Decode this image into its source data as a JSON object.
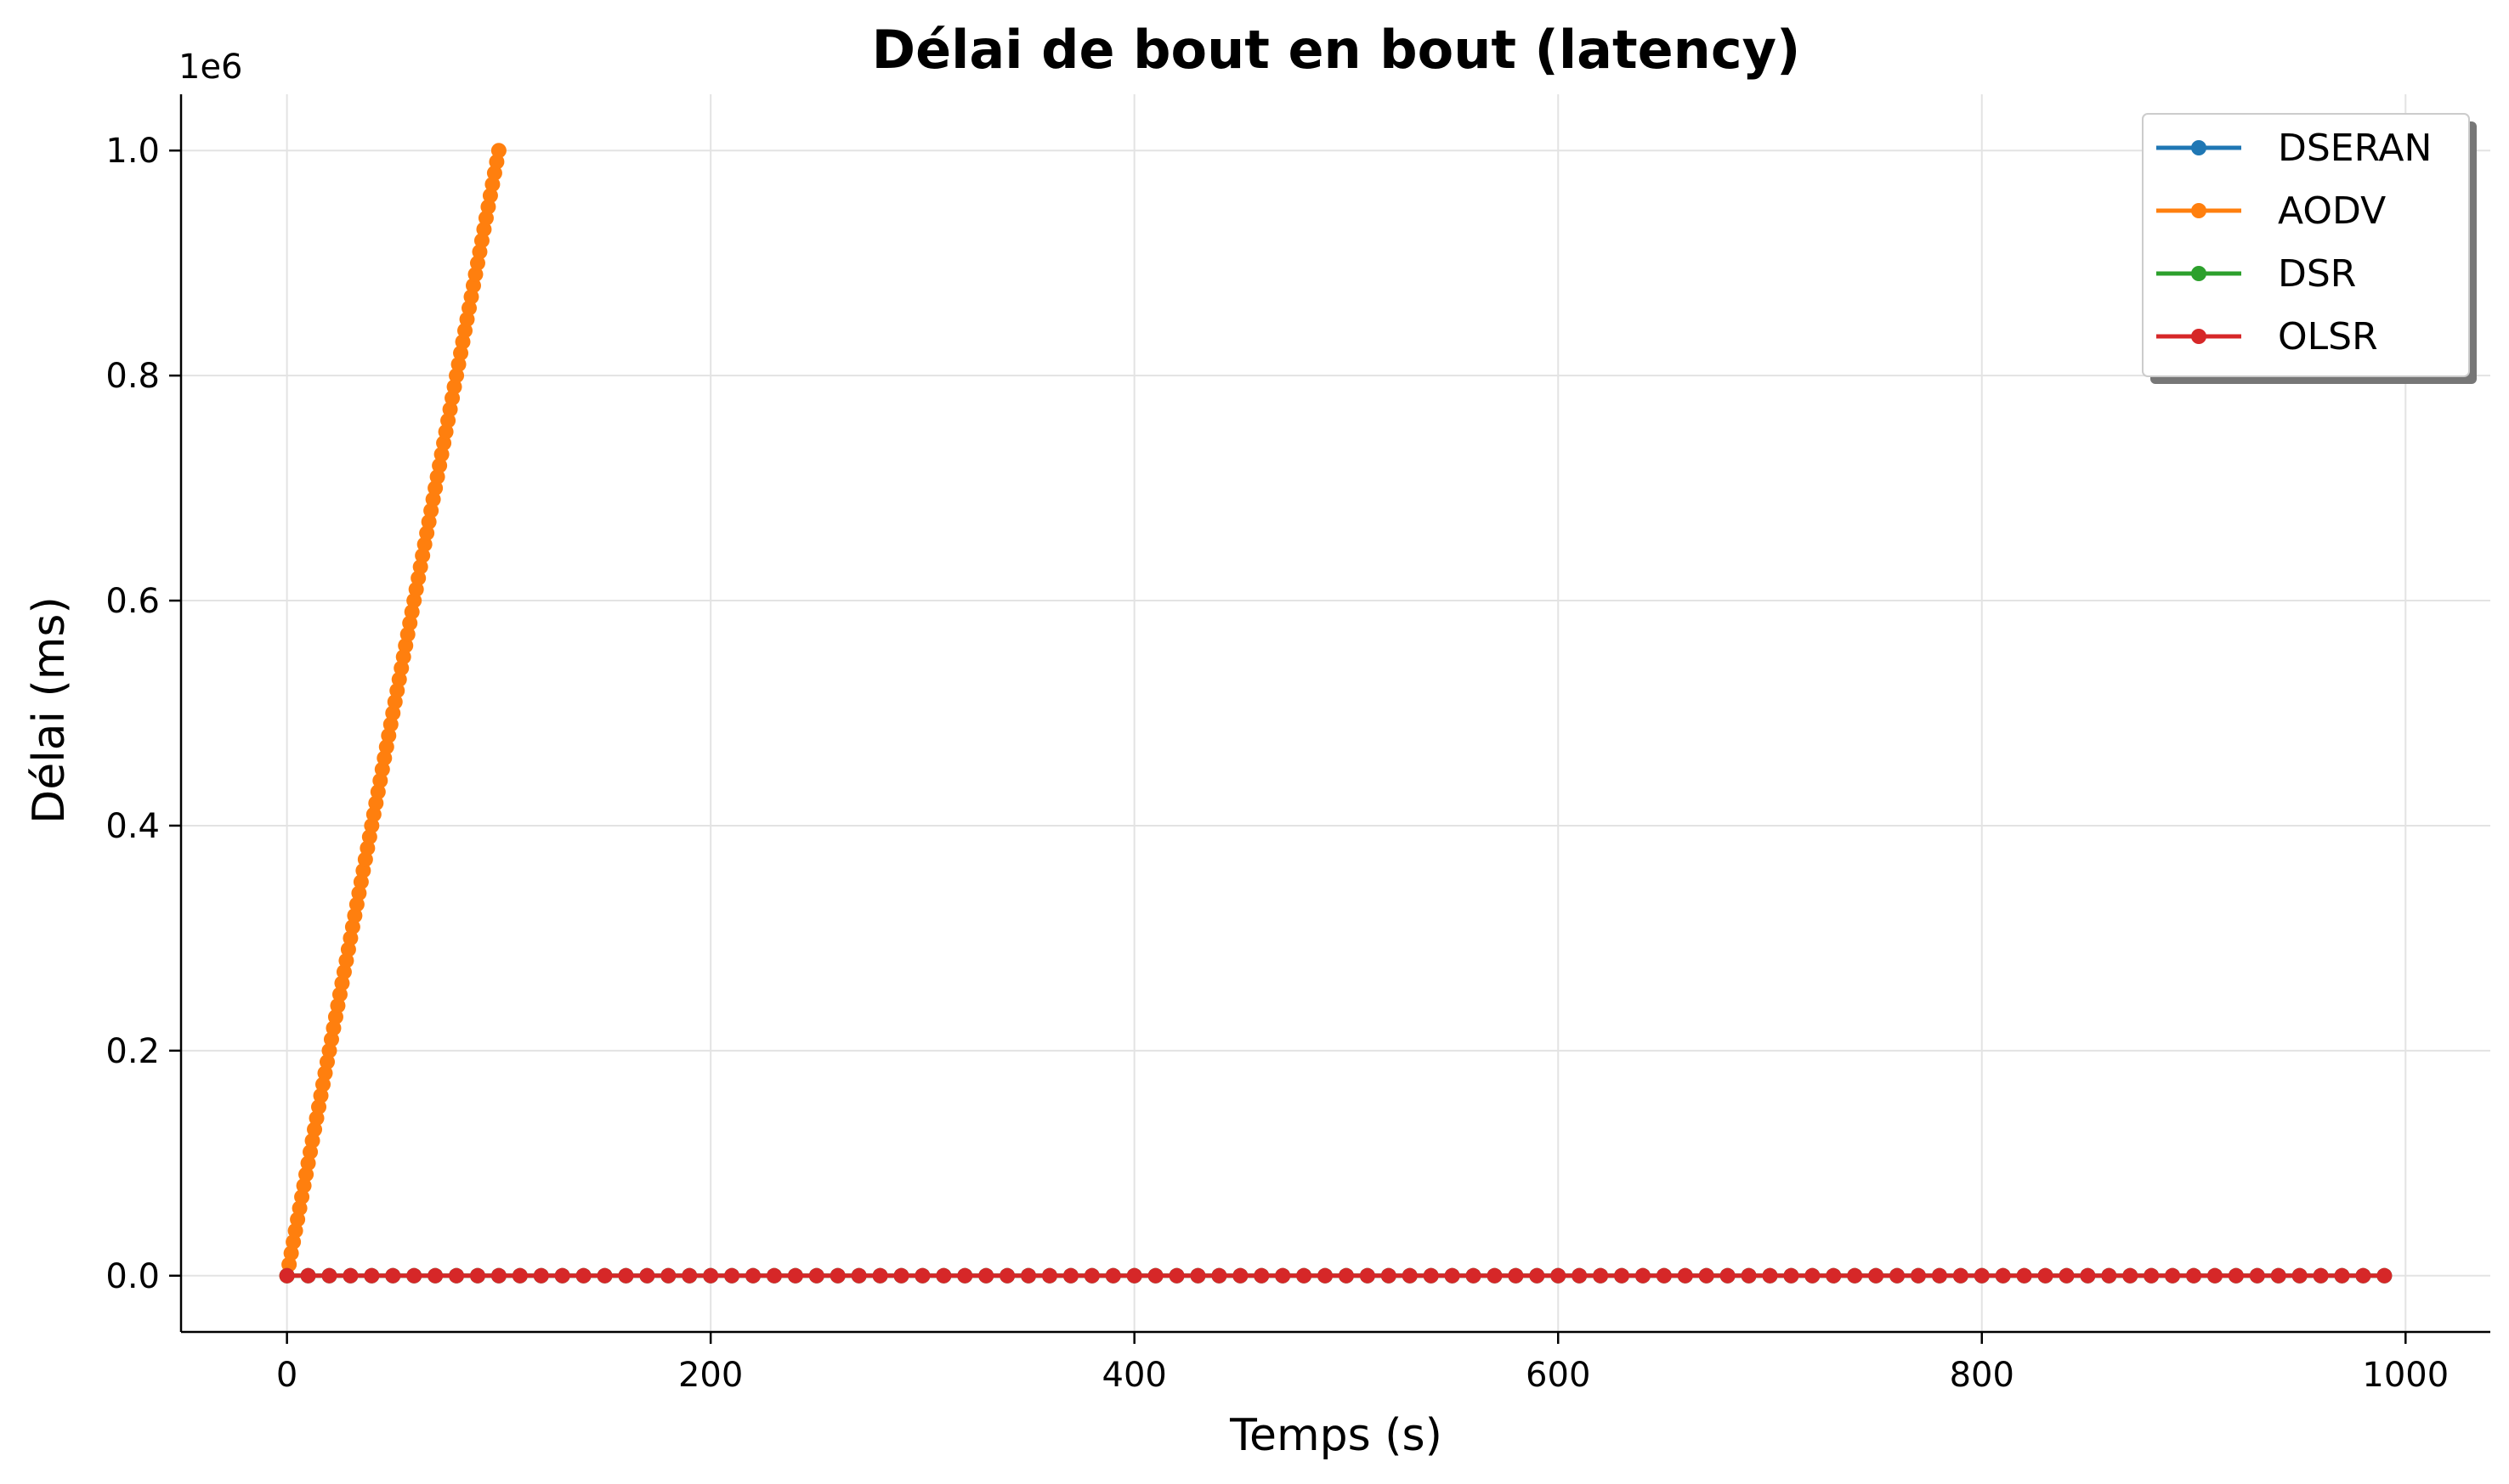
{
  "chart_data": {
    "type": "line",
    "title": "Délai de bout en bout (latency)",
    "xlabel": "Temps (s)",
    "ylabel": "Délai (ms)",
    "y_offset_label": "1e6",
    "xlim": [
      -50,
      1040
    ],
    "ylim": [
      -50000,
      1050000
    ],
    "x_ticks": [
      0,
      200,
      400,
      600,
      800,
      1000
    ],
    "x_tick_labels": [
      "0",
      "200",
      "400",
      "600",
      "800",
      "1000"
    ],
    "y_ticks": [
      0,
      200000,
      400000,
      600000,
      800000,
      1000000
    ],
    "y_tick_labels": [
      "0.0",
      "0.2",
      "0.4",
      "0.6",
      "0.8",
      "1.0"
    ],
    "grid": true,
    "legend_position": "top-right",
    "series": [
      {
        "name": "DSERAN",
        "color": "#1f77b4",
        "x_start": 0,
        "x_end": 990,
        "x_step": 10,
        "y_value": 0
      },
      {
        "name": "AODV",
        "color": "#ff7f0e",
        "x_start": 0,
        "x_end": 100,
        "x_step": 1,
        "y_start": 0,
        "y_end": 1000000
      },
      {
        "name": "DSR",
        "color": "#2ca02c",
        "x_start": 0,
        "x_end": 990,
        "x_step": 10,
        "y_value": 0
      },
      {
        "name": "OLSR",
        "color": "#d62728",
        "x_start": 0,
        "x_end": 990,
        "x_step": 10,
        "y_value": 0
      }
    ]
  }
}
